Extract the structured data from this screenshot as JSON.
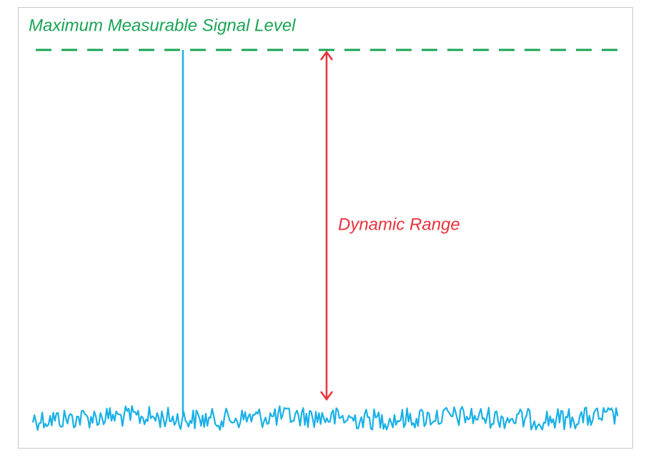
{
  "labels": {
    "max_level": "Maximum Measurable Signal Level",
    "dynamic_range": "Dynamic Range"
  }
}
